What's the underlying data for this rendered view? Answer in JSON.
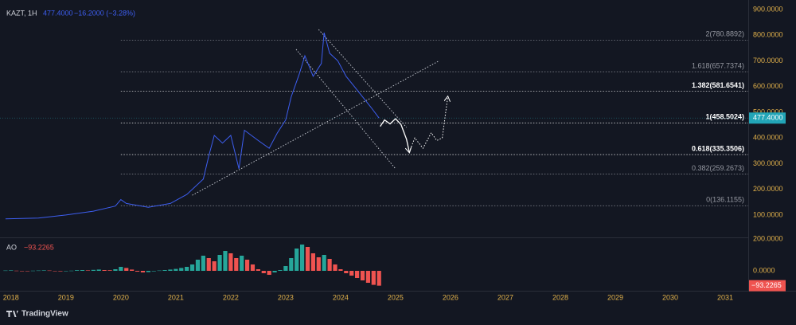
{
  "header": {
    "symbol": "KAZT, 1H",
    "last_label": "477.4000",
    "change": "−16.2000 (−3.28%)",
    "brand": "TradingView"
  },
  "chart_data": [
    {
      "type": "line",
      "xlim": [
        2017.8,
        2031.42
      ],
      "ylim": [
        13,
        937
      ],
      "xticks": [
        2018,
        2019,
        2020,
        2021,
        2022,
        2023,
        2024,
        2025,
        2026,
        2027,
        2028,
        2029,
        2030,
        2031
      ],
      "yticks": [
        {
          "value": 100,
          "label": "100.0000"
        },
        {
          "value": 200,
          "label": "200.0000"
        },
        {
          "value": 300,
          "label": "300.0000"
        },
        {
          "value": 400,
          "label": "400.0000"
        },
        {
          "value": 500,
          "label": "500.0000"
        },
        {
          "value": 600,
          "label": "600.0000"
        },
        {
          "value": 700,
          "label": "700.0000"
        },
        {
          "value": 800,
          "label": "800.0000"
        },
        {
          "value": 900,
          "label": "900.0000"
        }
      ],
      "series": [
        {
          "color": "#3d5ef0",
          "x": [
            2017.9,
            2018.5,
            2019.0,
            2019.5,
            2019.9,
            2020.0,
            2020.1,
            2020.5,
            2020.9,
            2021.2,
            2021.5,
            2021.6,
            2021.7,
            2021.85,
            2022.0,
            2022.15,
            2022.25,
            2022.5,
            2022.7,
            2022.85,
            2023.0,
            2023.1,
            2023.25,
            2023.35,
            2023.5,
            2023.65,
            2023.7,
            2023.8,
            2023.95,
            2024.1,
            2024.25,
            2024.4,
            2024.55,
            2024.7
          ],
          "values": [
            85,
            88,
            100,
            115,
            135,
            160,
            145,
            130,
            145,
            180,
            240,
            330,
            410,
            380,
            410,
            280,
            430,
            390,
            360,
            420,
            470,
            560,
            650,
            720,
            640,
            690,
            810,
            730,
            700,
            640,
            600,
            560,
            520,
            477.4
          ]
        }
      ],
      "last_color": "#22a5b7",
      "projection": [
        {
          "color": "#ffffff",
          "dashed": false,
          "x": [
            2024.72,
            2024.8,
            2024.9,
            2025.0,
            2025.1,
            2025.2,
            2025.25
          ],
          "values": [
            445,
            470,
            455,
            475,
            452,
            395,
            345
          ]
        },
        {
          "color": "#ffffff",
          "dashed": true,
          "x": [
            2025.25,
            2025.35,
            2025.5,
            2025.65,
            2025.75,
            2025.85,
            2025.95
          ],
          "values": [
            345,
            400,
            360,
            420,
            390,
            400,
            560
          ]
        }
      ],
      "trendlines": [
        {
          "x": [
            2021.3,
            2025.8
          ],
          "values": [
            177,
            701
          ]
        },
        {
          "x": [
            2023.19,
            2025.0
          ],
          "values": [
            745,
            280
          ]
        },
        {
          "x": [
            2023.6,
            2025.2
          ],
          "values": [
            822,
            441
          ]
        }
      ],
      "fib_start": 2020.0,
      "fib": [
        {
          "value": 780.8892,
          "label": "2(780.8892)",
          "color": "#9598a1"
        },
        {
          "value": 657.7374,
          "label": "1.618(657.7374)",
          "color": "#9598a1"
        },
        {
          "value": 581.6541,
          "label": "1.382(581.6541)",
          "color": "#ffffff"
        },
        {
          "value": 458.5024,
          "label": "1(458.5024)",
          "color": "#ffffff"
        },
        {
          "value": 335.3506,
          "label": "0.618(335.3506)",
          "color": "#ffffff"
        },
        {
          "value": 259.2673,
          "label": "0.382(259.2673)",
          "color": "#9598a1"
        },
        {
          "value": 136.1155,
          "label": "0(136.1155)",
          "color": "#9598a1"
        }
      ]
    },
    {
      "type": "bar",
      "title": "AO",
      "last_label": "−93.2265",
      "ylim": [
        -125,
        210
      ],
      "yticks": [
        {
          "value": 0,
          "label": "0.0000"
        },
        {
          "value": 200,
          "label": "200.0000"
        }
      ],
      "up_color": "#26a69a",
      "down_color": "#ef5350",
      "x": [
        2017.9,
        2018.0,
        2018.1,
        2018.2,
        2018.3,
        2018.4,
        2018.5,
        2018.6,
        2018.7,
        2018.8,
        2018.9,
        2019.0,
        2019.1,
        2019.2,
        2019.3,
        2019.4,
        2019.5,
        2019.6,
        2019.7,
        2019.8,
        2019.9,
        2020.0,
        2020.1,
        2020.2,
        2020.3,
        2020.4,
        2020.5,
        2020.6,
        2020.7,
        2020.8,
        2020.9,
        2021.0,
        2021.1,
        2021.2,
        2021.3,
        2021.4,
        2021.5,
        2021.6,
        2021.7,
        2021.8,
        2021.9,
        2022.0,
        2022.1,
        2022.2,
        2022.3,
        2022.4,
        2022.5,
        2022.6,
        2022.7,
        2022.8,
        2022.9,
        2023.0,
        2023.1,
        2023.2,
        2023.3,
        2023.4,
        2023.5,
        2023.6,
        2023.7,
        2023.8,
        2023.9,
        2024.0,
        2024.1,
        2024.2,
        2024.3,
        2024.4,
        2024.5,
        2024.6,
        2024.7
      ],
      "values": [
        2,
        3,
        1,
        -1,
        -2,
        1,
        2,
        3,
        2,
        -1,
        -3,
        -2,
        1,
        4,
        5,
        3,
        6,
        8,
        5,
        4,
        10,
        25,
        18,
        8,
        -5,
        -10,
        -8,
        -3,
        2,
        5,
        8,
        12,
        18,
        25,
        40,
        70,
        95,
        80,
        60,
        100,
        125,
        110,
        80,
        95,
        70,
        40,
        10,
        -15,
        -25,
        -10,
        5,
        30,
        80,
        140,
        165,
        150,
        110,
        85,
        100,
        75,
        40,
        10,
        -15,
        -30,
        -45,
        -60,
        -75,
        -88,
        -93.2265
      ]
    }
  ]
}
